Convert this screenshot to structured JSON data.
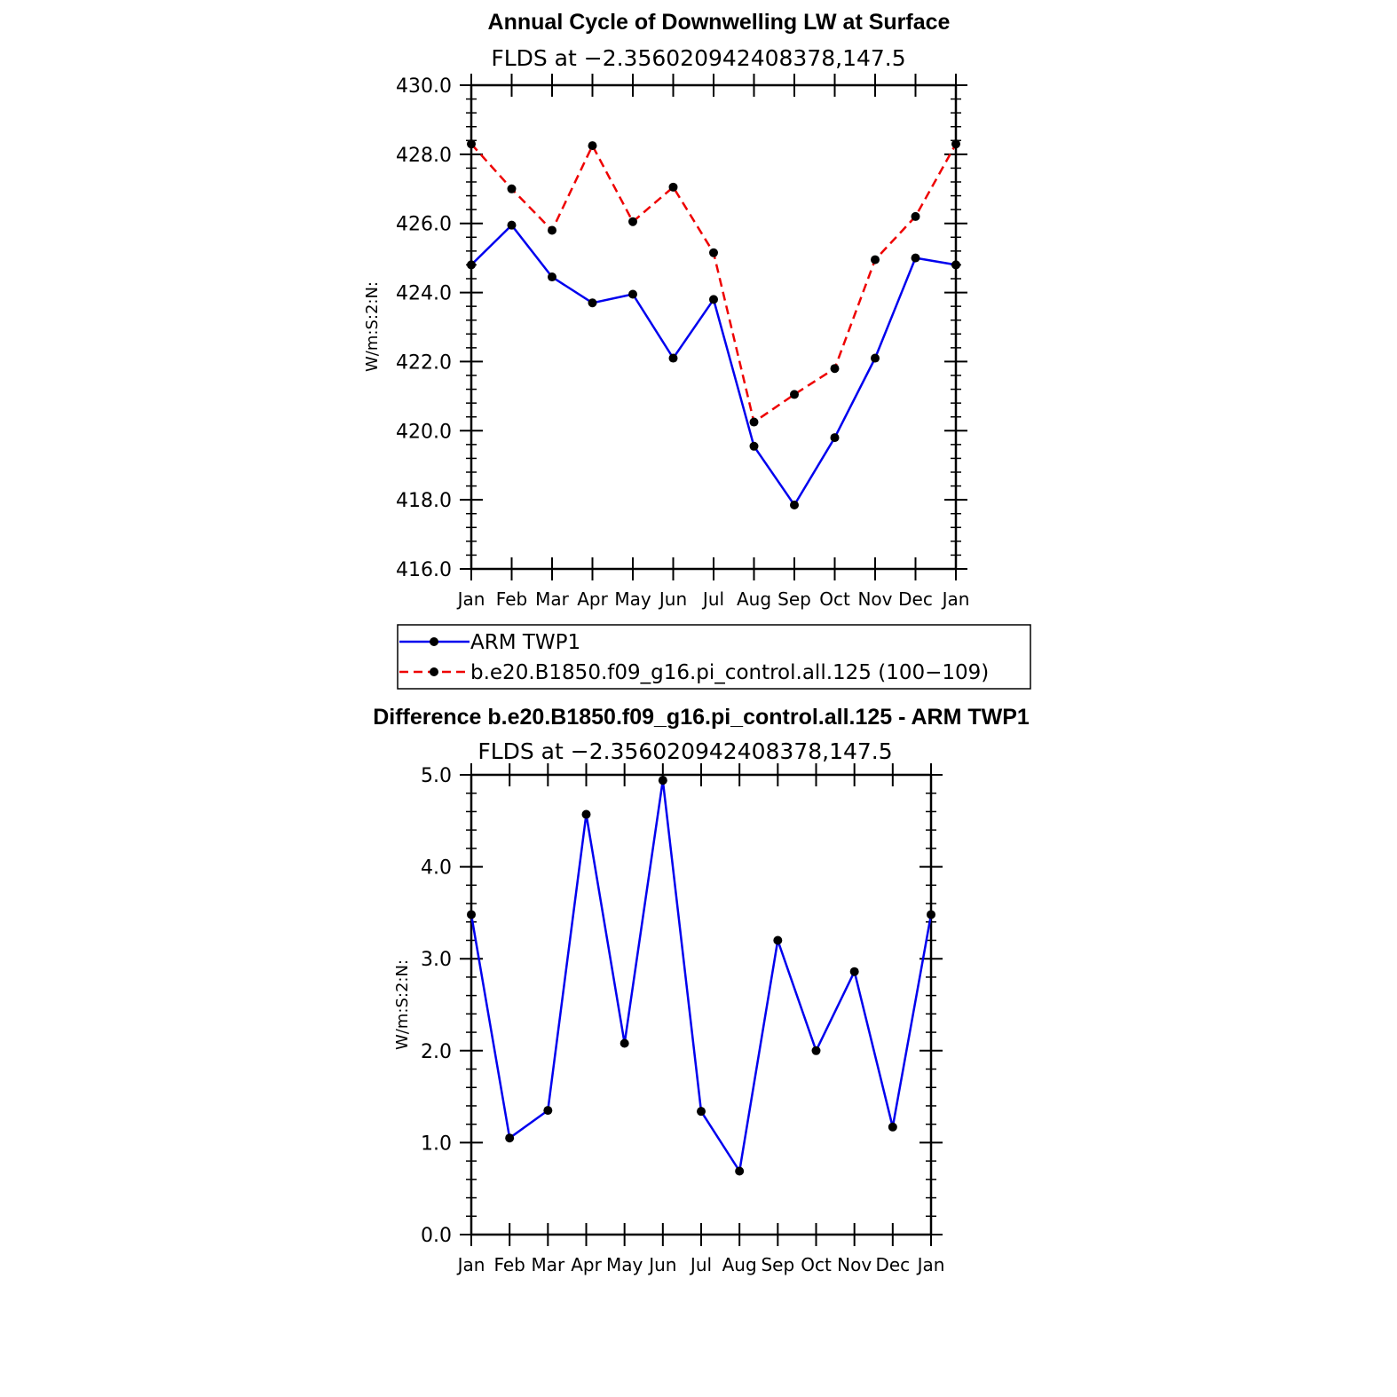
{
  "chart_data": [
    {
      "type": "line",
      "title": "Annual Cycle of Downwelling LW at Surface",
      "subtitle": "FLDS at −2.356020942408378,147.5",
      "ylabel": "W/m:S:2:N:",
      "ylim": [
        416.0,
        430.0
      ],
      "ytick_labels": [
        "416.0",
        "418.0",
        "420.0",
        "422.0",
        "424.0",
        "426.0",
        "428.0",
        "430.0"
      ],
      "categories": [
        "Jan",
        "Feb",
        "Mar",
        "Apr",
        "May",
        "Jun",
        "Jul",
        "Aug",
        "Sep",
        "Oct",
        "Nov",
        "Dec",
        "Jan"
      ],
      "series": [
        {
          "name": "ARM TWP1",
          "color": "#0000ee",
          "dash": "solid",
          "values": [
            424.8,
            425.95,
            424.45,
            423.7,
            423.95,
            422.1,
            423.8,
            419.55,
            417.85,
            419.8,
            422.1,
            425.0,
            424.8
          ]
        },
        {
          "name": "b.e20.B1850.f09_g16.pi_control.all.125 (100−109)",
          "color": "#ee0000",
          "dash": "dashed",
          "values": [
            428.3,
            427.0,
            425.8,
            428.25,
            426.05,
            427.05,
            425.15,
            420.25,
            421.05,
            421.8,
            424.95,
            426.2,
            428.3
          ]
        }
      ],
      "legend": "below"
    },
    {
      "type": "line",
      "title": "Difference b.e20.B1850.f09_g16.pi_control.all.125 - ARM TWP1",
      "subtitle": "FLDS at −2.356020942408378,147.5",
      "ylabel": "W/m:S:2:N:",
      "ylim": [
        0.0,
        5.0
      ],
      "ytick_labels": [
        "0.0",
        "1.0",
        "2.0",
        "3.0",
        "4.0",
        "5.0"
      ],
      "categories": [
        "Jan",
        "Feb",
        "Mar",
        "Apr",
        "May",
        "Jun",
        "Jul",
        "Aug",
        "Sep",
        "Oct",
        "Nov",
        "Dec",
        "Jan"
      ],
      "series": [
        {
          "color": "#0000ee",
          "dash": "solid",
          "values": [
            3.48,
            1.05,
            1.35,
            4.57,
            2.08,
            4.94,
            1.34,
            0.69,
            3.2,
            2.0,
            2.86,
            1.17,
            3.48
          ]
        }
      ]
    }
  ]
}
